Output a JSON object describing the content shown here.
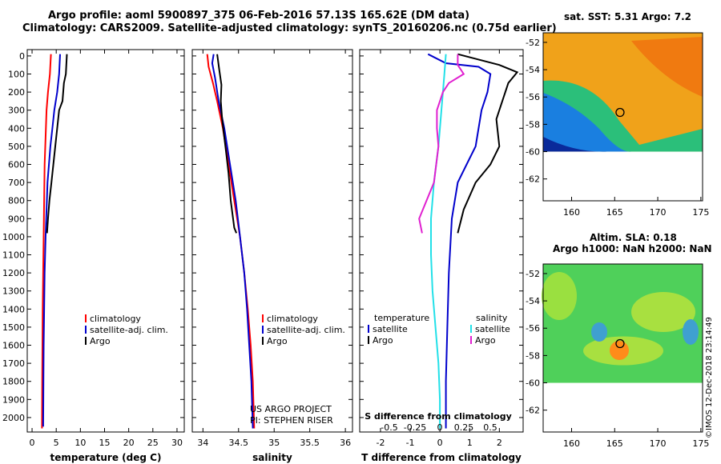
{
  "title_line1": "Argo profile: aoml 5900897_375 06-Feb-2016 57.13S 165.62E (DM data)",
  "title_line2": "Climatology: CARS2009. Satellite-adjusted climatology: synTS_20160206.nc (0.75d earlier)",
  "credit_project": "US ARGO PROJECT",
  "credit_pi": "PI: STEPHEN RISER",
  "imos_stamp": "©IMOS 12-Dec-2018 23:14:49",
  "colors": {
    "climatology": "#ff0000",
    "satellite": "#0000cc",
    "argo": "#000000",
    "sal_sat": "#22e0e8",
    "sal_argo": "#e020d0"
  },
  "depth_ticks": [
    0,
    100,
    200,
    300,
    400,
    500,
    600,
    700,
    800,
    900,
    1000,
    1100,
    1200,
    1300,
    1400,
    1500,
    1600,
    1700,
    1800,
    1900,
    2000
  ],
  "chart_data": [
    {
      "type": "line",
      "xlabel": "temperature (deg C)",
      "xticks": [
        0,
        5,
        10,
        15,
        20,
        25,
        30
      ],
      "xlim": [
        -1,
        31.5
      ],
      "ylim": [
        2080,
        -35
      ],
      "legend": [
        "climatology",
        "satellite-adj. clim.",
        "Argo"
      ],
      "series": [
        {
          "name": "climatology",
          "color": "#ff0000",
          "points": [
            [
              3.9,
              -10
            ],
            [
              3.7,
              100
            ],
            [
              3.3,
              200
            ],
            [
              3.0,
              300
            ],
            [
              2.8,
              450
            ],
            [
              2.6,
              600
            ],
            [
              2.5,
              800
            ],
            [
              2.4,
              1000
            ],
            [
              2.3,
              1200
            ],
            [
              2.2,
              1400
            ],
            [
              2.15,
              1600
            ],
            [
              2.1,
              1800
            ],
            [
              2.05,
              2060
            ]
          ]
        },
        {
          "name": "satellite-adj. clim.",
          "color": "#0000cc",
          "points": [
            [
              5.8,
              -10
            ],
            [
              5.6,
              100
            ],
            [
              5.2,
              200
            ],
            [
              4.6,
              300
            ],
            [
              4.2,
              400
            ],
            [
              3.8,
              500
            ],
            [
              3.5,
              600
            ],
            [
              3.2,
              700
            ],
            [
              3.0,
              850
            ],
            [
              2.8,
              1000
            ],
            [
              2.6,
              1200
            ],
            [
              2.5,
              1400
            ],
            [
              2.4,
              1600
            ],
            [
              2.35,
              1800
            ],
            [
              2.3,
              2050
            ]
          ]
        },
        {
          "name": "Argo",
          "color": "#000000",
          "points": [
            [
              7.2,
              -10
            ],
            [
              7.0,
              100
            ],
            [
              6.6,
              150
            ],
            [
              6.3,
              250
            ],
            [
              5.6,
              300
            ],
            [
              5.2,
              400
            ],
            [
              4.8,
              500
            ],
            [
              4.4,
              600
            ],
            [
              4.0,
              700
            ],
            [
              3.6,
              800
            ],
            [
              3.3,
              900
            ],
            [
              3.1,
              980
            ]
          ]
        }
      ]
    },
    {
      "type": "line",
      "xlabel": "salinity",
      "xticks": [
        34,
        34.5,
        35,
        35.5,
        36
      ],
      "xlim": [
        33.85,
        36.1
      ],
      "ylim": [
        2080,
        -35
      ],
      "legend": [
        "climatology",
        "satellite-adj. clim.",
        "Argo"
      ],
      "series": [
        {
          "name": "climatology",
          "color": "#ff0000",
          "points": [
            [
              34.06,
              -10
            ],
            [
              34.08,
              60
            ],
            [
              34.14,
              150
            ],
            [
              34.2,
              250
            ],
            [
              34.28,
              400
            ],
            [
              34.36,
              600
            ],
            [
              34.44,
              800
            ],
            [
              34.52,
              1000
            ],
            [
              34.58,
              1200
            ],
            [
              34.63,
              1400
            ],
            [
              34.67,
              1600
            ],
            [
              34.7,
              1800
            ],
            [
              34.72,
              2060
            ]
          ]
        },
        {
          "name": "satellite-adj. clim.",
          "color": "#0000cc",
          "points": [
            [
              34.15,
              -10
            ],
            [
              34.13,
              40
            ],
            [
              34.17,
              120
            ],
            [
              34.22,
              250
            ],
            [
              34.3,
              400
            ],
            [
              34.38,
              600
            ],
            [
              34.46,
              800
            ],
            [
              34.52,
              1000
            ],
            [
              34.58,
              1200
            ],
            [
              34.62,
              1400
            ],
            [
              34.65,
              1600
            ],
            [
              34.68,
              1800
            ],
            [
              34.7,
              2060
            ]
          ]
        },
        {
          "name": "Argo",
          "color": "#000000",
          "points": [
            [
              34.2,
              -10
            ],
            [
              34.23,
              80
            ],
            [
              34.26,
              160
            ],
            [
              34.25,
              250
            ],
            [
              34.27,
              350
            ],
            [
              34.3,
              450
            ],
            [
              34.33,
              550
            ],
            [
              34.36,
              650
            ],
            [
              34.39,
              800
            ],
            [
              34.44,
              950
            ],
            [
              34.47,
              980
            ]
          ]
        }
      ]
    },
    {
      "type": "line",
      "xlabel": "T difference from climatology",
      "sublabel": "S difference from climatology",
      "xticks": [
        -2,
        -1,
        0,
        1,
        2
      ],
      "xlim": [
        -2.7,
        2.8
      ],
      "s_ticks": [
        "-0.5",
        "-0.25",
        "0",
        "0.25",
        "0.5"
      ],
      "ylim": [
        2080,
        -35
      ],
      "legend_left_title": "temperature",
      "legend_left": [
        "satellite",
        "Argo"
      ],
      "legend_right_title": "salinity",
      "legend_right": [
        "satellite",
        "Argo"
      ],
      "series": [
        {
          "name": "T satellite",
          "color": "#0000cc",
          "points": [
            [
              -0.4,
              -10
            ],
            [
              0.2,
              40
            ],
            [
              1.3,
              60
            ],
            [
              1.7,
              100
            ],
            [
              1.6,
              200
            ],
            [
              1.4,
              300
            ],
            [
              1.3,
              400
            ],
            [
              1.2,
              500
            ],
            [
              0.9,
              600
            ],
            [
              0.6,
              700
            ],
            [
              0.4,
              900
            ],
            [
              0.3,
              1200
            ],
            [
              0.25,
              1500
            ],
            [
              0.2,
              1800
            ],
            [
              0.2,
              2060
            ]
          ]
        },
        {
          "name": "T Argo",
          "color": "#000000",
          "points": [
            [
              0.6,
              -10
            ],
            [
              2.0,
              50
            ],
            [
              2.6,
              90
            ],
            [
              2.3,
              150
            ],
            [
              2.1,
              250
            ],
            [
              1.9,
              350
            ],
            [
              2.0,
              500
            ],
            [
              1.7,
              600
            ],
            [
              1.2,
              700
            ],
            [
              0.8,
              850
            ],
            [
              0.6,
              980
            ]
          ]
        },
        {
          "name": "S satellite",
          "color": "#22e0e8",
          "points": [
            [
              0.2,
              -10
            ],
            [
              0.15,
              100
            ],
            [
              0.1,
              200
            ],
            [
              0.05,
              300
            ],
            [
              -0.05,
              500
            ],
            [
              -0.2,
              700
            ],
            [
              -0.3,
              900
            ],
            [
              -0.3,
              1100
            ],
            [
              -0.25,
              1300
            ],
            [
              -0.15,
              1500
            ],
            [
              -0.05,
              1700
            ],
            [
              0,
              1900
            ],
            [
              0,
              2060
            ]
          ]
        },
        {
          "name": "S Argo",
          "color": "#e020d0",
          "points": [
            [
              0.6,
              -10
            ],
            [
              0.6,
              50
            ],
            [
              0.8,
              100
            ],
            [
              0.3,
              150
            ],
            [
              0.1,
              200
            ],
            [
              -0.1,
              300
            ],
            [
              -0.1,
              400
            ],
            [
              -0.05,
              500
            ],
            [
              -0.2,
              700
            ],
            [
              -0.7,
              900
            ],
            [
              -0.6,
              980
            ]
          ]
        }
      ]
    }
  ],
  "maps": {
    "top": {
      "title": "sat. SST: 5.31 Argo: 7.2",
      "lon_ticks": [
        160,
        165,
        170,
        175
      ],
      "lat_ticks": [
        -52,
        -54,
        -56,
        -58,
        -60,
        -62
      ]
    },
    "bottom": {
      "title_line1": "Altim. SLA: 0.18",
      "title_line2": "Argo h1000: NaN h2000: NaN",
      "lon_ticks": [
        160,
        165,
        170,
        175
      ],
      "lat_ticks": [
        -52,
        -54,
        -56,
        -58,
        -60,
        -62
      ]
    },
    "marker": {
      "lon": 165.62,
      "lat": -57.13
    }
  }
}
